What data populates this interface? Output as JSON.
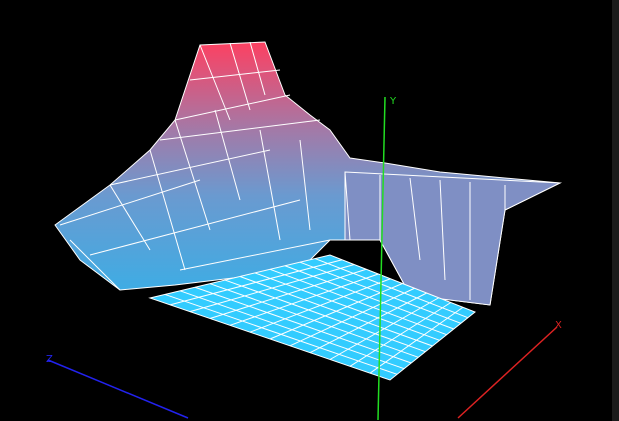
{
  "axes": {
    "y_label": "Y",
    "z_label": "Z",
    "x_label": "X"
  }
}
